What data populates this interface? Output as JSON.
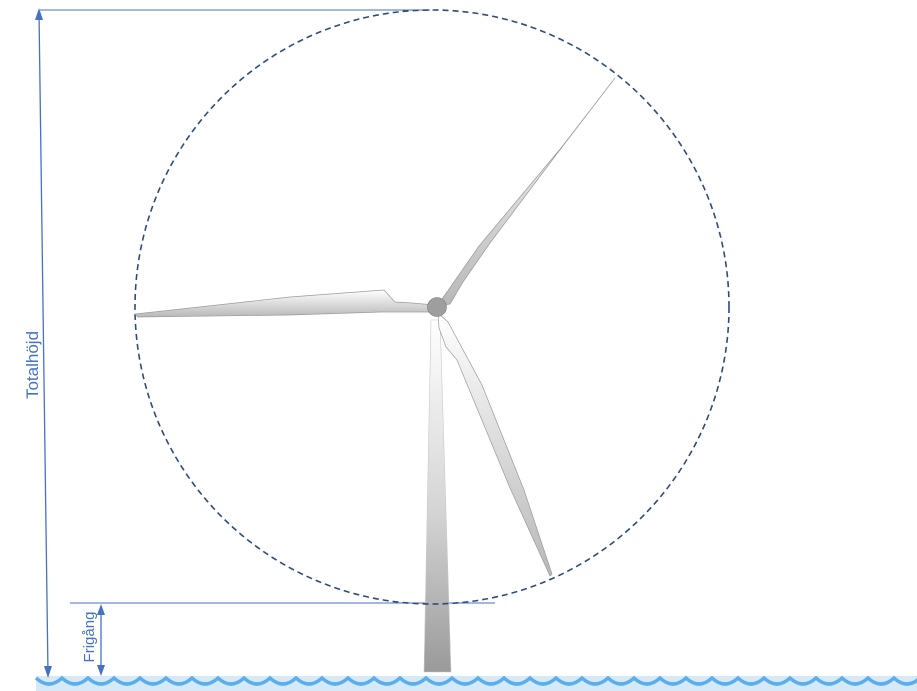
{
  "labels": {
    "total_height": "Totalhöjd",
    "clearance": "Frigång"
  },
  "colors": {
    "dimension_line": "#4472c4",
    "rotor_circle": "#2f4b7c",
    "blade_light": "#ffffff",
    "blade_dark": "#b8b8b8",
    "hub": "#9e9e9e",
    "water": "#d6e9f8",
    "wave_line": "#5aaeea"
  },
  "icons": [
    "wind-turbine",
    "water-waves"
  ]
}
